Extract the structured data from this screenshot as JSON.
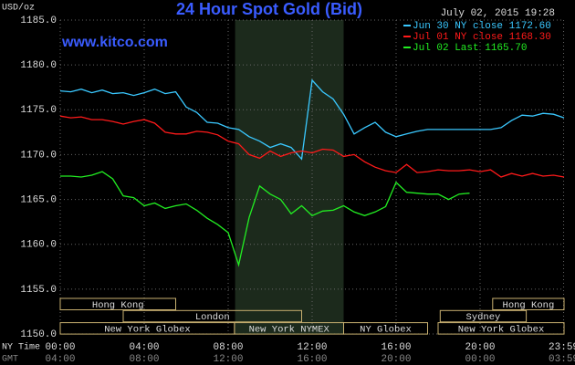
{
  "chart_data": {
    "type": "line",
    "title": "24 Hour Spot Gold (Bid)",
    "subtitle": "www.kitco.com",
    "timestamp": "July 02, 2015 19:28",
    "y_label": "USD/oz",
    "x_label": "NY Time",
    "x2_label": "GMT",
    "x": [
      0,
      0.5,
      1,
      1.5,
      2,
      2.5,
      3,
      3.5,
      4,
      4.5,
      5,
      5.5,
      6,
      6.5,
      7,
      7.5,
      8,
      8.5,
      9,
      9.5,
      10,
      10.5,
      11,
      11.5,
      12,
      12.5,
      13,
      13.5,
      14,
      14.5,
      15,
      15.5,
      16,
      16.5,
      17,
      17.5,
      18,
      18.5,
      19,
      19.5,
      20,
      20.5,
      21,
      21.5,
      22,
      22.5,
      23,
      23.5,
      24
    ],
    "series": [
      {
        "name": "Jun 30 NY close 1172.60",
        "color": "#3ac8ff",
        "values": [
          1177.1,
          1177,
          1177.3,
          1176.9,
          1177.2,
          1176.8,
          1176.9,
          1176.6,
          1176.9,
          1177.3,
          1176.8,
          1177,
          1175.3,
          1174.7,
          1173.6,
          1173.5,
          1173,
          1172.8,
          1172,
          1171.5,
          1170.8,
          1171.2,
          1170.8,
          1169.5,
          1178.3,
          1177,
          1176.2,
          1174.5,
          1172.3,
          1173,
          1173.6,
          1172.5,
          1172,
          1172.3,
          1172.6,
          1172.8,
          1172.8,
          1172.8,
          1172.8,
          1172.8,
          1172.8,
          1172.8,
          1173,
          1173.8,
          1174.4,
          1174.3,
          1174.6,
          1174.5,
          1174.1
        ]
      },
      {
        "name": "Jul 01 NY close 1168.30",
        "color": "#ff1a1a",
        "values": [
          1174.3,
          1174.1,
          1174.2,
          1173.9,
          1173.9,
          1173.7,
          1173.4,
          1173.7,
          1173.9,
          1173.5,
          1172.5,
          1172.3,
          1172.3,
          1172.6,
          1172.5,
          1172.2,
          1171.5,
          1171.2,
          1170,
          1169.6,
          1170.4,
          1169.8,
          1170.2,
          1170.4,
          1170.2,
          1170.6,
          1170.5,
          1169.8,
          1170,
          1169.2,
          1168.6,
          1168.2,
          1168,
          1168.9,
          1168,
          1168.1,
          1168.3,
          1168.2,
          1168.2,
          1168.3,
          1168.1,
          1168.3,
          1167.5,
          1167.9,
          1167.6,
          1167.9,
          1167.6,
          1167.7,
          1167.5
        ]
      },
      {
        "name": "Jul 02 Last 1165.70",
        "color": "#22ee22",
        "values": [
          1167.6,
          1167.6,
          1167.5,
          1167.7,
          1168.1,
          1167.3,
          1165.4,
          1165.2,
          1164.3,
          1164.6,
          1164,
          1164.3,
          1164.5,
          1163.8,
          1162.9,
          1162.2,
          1161.3,
          1157.7,
          1163,
          1166.5,
          1165.6,
          1165,
          1163.4,
          1164.3,
          1163.2,
          1163.7,
          1163.8,
          1164.3,
          1163.6,
          1163.2,
          1163.6,
          1164.2,
          1166.9,
          1165.8,
          1165.7,
          1165.6,
          1165.6,
          1165,
          1165.6,
          1165.7,
          null,
          null,
          null,
          null,
          null,
          null,
          null,
          null,
          null
        ]
      }
    ],
    "xlim": [
      0,
      24
    ],
    "xticks": [
      {
        "value": 0,
        "label": "00:00"
      },
      {
        "value": 4,
        "label": "04:00"
      },
      {
        "value": 8,
        "label": "08:00"
      },
      {
        "value": 12,
        "label": "12:00"
      },
      {
        "value": 16,
        "label": "16:00"
      },
      {
        "value": 20,
        "label": "20:00"
      },
      {
        "value": 23.98,
        "label": "23:59"
      }
    ],
    "gmt_labels": [
      "04:00",
      "08:00",
      "12:00",
      "16:00",
      "20:00",
      "00:00",
      "03:59"
    ],
    "ylim": [
      1150,
      1185
    ],
    "yticks": [
      {
        "value": 1150,
        "label": "1150.0"
      },
      {
        "value": 1155,
        "label": "1155.0"
      },
      {
        "value": 1160,
        "label": "1160.0"
      },
      {
        "value": 1165,
        "label": "1165.0"
      },
      {
        "value": 1170,
        "label": "1170.0"
      },
      {
        "value": 1175,
        "label": "1175.0"
      },
      {
        "value": 1180,
        "label": "1180.0"
      },
      {
        "value": 1185,
        "label": "1185.0"
      }
    ],
    "grid": true,
    "shaded_range": [
      8.33,
      13.5
    ],
    "sessions": [
      [
        {
          "label": "Hong Kong",
          "start": 0,
          "end": 5.5
        },
        {
          "label": "Hong Kong",
          "start": 20.6,
          "end": 24
        }
      ],
      [
        {
          "label": "London",
          "start": 3,
          "end": 11.5
        },
        {
          "label": "Sydney",
          "start": 18.1,
          "end": 22.2
        }
      ],
      [
        {
          "label": "New York Globex",
          "start": 0,
          "end": 8.3
        },
        {
          "label": "New York NYMEX",
          "start": 8.3,
          "end": 13.5
        },
        {
          "label": "NY Globex",
          "start": 13.5,
          "end": 17.5
        },
        {
          "label": "New York Globex",
          "start": 18,
          "end": 24
        }
      ]
    ]
  }
}
